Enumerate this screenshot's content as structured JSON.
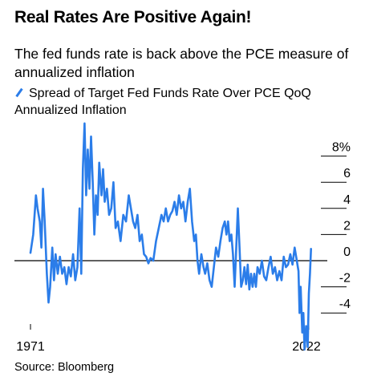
{
  "title": "Real Rates Are Positive Again!",
  "subtitle": "The fed funds rate is back above the PCE measure of annualized inflation",
  "source": "Source: Bloomberg",
  "series_color": "#2b7de9",
  "chart_data": {
    "type": "line",
    "series": [
      {
        "name": "Spread of Target Fed Funds Rate Over PCE QoQ Annualized Inflation",
        "points": [
          [
            1971.0,
            0.6
          ],
          [
            1971.5,
            2.0
          ],
          [
            1972.0,
            5.0
          ],
          [
            1972.3,
            4.0
          ],
          [
            1972.7,
            3.0
          ],
          [
            1973.0,
            1.0
          ],
          [
            1973.3,
            5.5
          ],
          [
            1973.6,
            3.0
          ],
          [
            1974.0,
            -1.0
          ],
          [
            1974.3,
            -3.2
          ],
          [
            1974.6,
            -2.0
          ],
          [
            1975.0,
            1.0
          ],
          [
            1975.3,
            -1.5
          ],
          [
            1975.6,
            0.5
          ],
          [
            1976.0,
            -1.0
          ],
          [
            1976.4,
            0.3
          ],
          [
            1976.8,
            -1.0
          ],
          [
            1977.2,
            -0.5
          ],
          [
            1977.6,
            -1.8
          ],
          [
            1978.0,
            -0.5
          ],
          [
            1978.4,
            -1.2
          ],
          [
            1978.8,
            0.5
          ],
          [
            1979.2,
            -1.5
          ],
          [
            1979.6,
            -0.5
          ],
          [
            1980.0,
            4.0
          ],
          [
            1980.3,
            -1.0
          ],
          [
            1980.6,
            7.0
          ],
          [
            1980.9,
            10.5
          ],
          [
            1981.2,
            5.0
          ],
          [
            1981.5,
            8.5
          ],
          [
            1981.8,
            5.5
          ],
          [
            1982.1,
            9.5
          ],
          [
            1982.4,
            6.0
          ],
          [
            1982.7,
            2.0
          ],
          [
            1983.0,
            5.0
          ],
          [
            1983.3,
            3.5
          ],
          [
            1983.6,
            7.5
          ],
          [
            1984.0,
            5.0
          ],
          [
            1984.3,
            7.0
          ],
          [
            1984.6,
            4.5
          ],
          [
            1985.0,
            5.5
          ],
          [
            1985.4,
            3.5
          ],
          [
            1985.8,
            4.0
          ],
          [
            1986.2,
            6.0
          ],
          [
            1986.6,
            2.5
          ],
          [
            1987.0,
            3.0
          ],
          [
            1987.5,
            1.5
          ],
          [
            1988.0,
            3.5
          ],
          [
            1988.5,
            3.0
          ],
          [
            1989.0,
            5.0
          ],
          [
            1989.4,
            4.0
          ],
          [
            1989.8,
            3.0
          ],
          [
            1990.2,
            2.5
          ],
          [
            1990.6,
            3.5
          ],
          [
            1991.0,
            1.5
          ],
          [
            1991.4,
            2.0
          ],
          [
            1991.8,
            0.5
          ],
          [
            1992.2,
            0.3
          ],
          [
            1992.6,
            -0.2
          ],
          [
            1993.0,
            0.2
          ],
          [
            1993.5,
            0.0
          ],
          [
            1994.0,
            1.5
          ],
          [
            1994.5,
            2.5
          ],
          [
            1995.0,
            3.5
          ],
          [
            1995.4,
            3.0
          ],
          [
            1995.8,
            4.0
          ],
          [
            1996.2,
            3.0
          ],
          [
            1996.6,
            3.5
          ],
          [
            1997.0,
            3.8
          ],
          [
            1997.4,
            4.5
          ],
          [
            1997.8,
            3.5
          ],
          [
            1998.2,
            5.0
          ],
          [
            1998.6,
            4.0
          ],
          [
            1999.0,
            4.5
          ],
          [
            1999.4,
            3.0
          ],
          [
            1999.8,
            4.5
          ],
          [
            2000.2,
            5.5
          ],
          [
            2000.6,
            3.0
          ],
          [
            2001.0,
            1.5
          ],
          [
            2001.3,
            2.0
          ],
          [
            2001.6,
            0.0
          ],
          [
            2001.9,
            -1.0
          ],
          [
            2002.3,
            0.5
          ],
          [
            2002.7,
            -0.5
          ],
          [
            2003.0,
            -1.0
          ],
          [
            2003.4,
            -0.2
          ],
          [
            2003.8,
            -1.5
          ],
          [
            2004.2,
            -2.0
          ],
          [
            2004.6,
            -0.5
          ],
          [
            2005.0,
            1.0
          ],
          [
            2005.4,
            0.3
          ],
          [
            2005.8,
            1.5
          ],
          [
            2006.2,
            2.5
          ],
          [
            2006.6,
            3.0
          ],
          [
            2006.9,
            2.0
          ],
          [
            2007.2,
            3.0
          ],
          [
            2007.5,
            1.5
          ],
          [
            2007.8,
            2.0
          ],
          [
            2008.1,
            0.5
          ],
          [
            2008.4,
            -2.0
          ],
          [
            2008.7,
            1.0
          ],
          [
            2009.0,
            4.0
          ],
          [
            2009.3,
            1.0
          ],
          [
            2009.6,
            -2.0
          ],
          [
            2009.9,
            -1.5
          ],
          [
            2010.2,
            -0.5
          ],
          [
            2010.5,
            -1.8
          ],
          [
            2010.8,
            -0.3
          ],
          [
            2011.1,
            -2.2
          ],
          [
            2011.4,
            -1.0
          ],
          [
            2011.7,
            -2.0
          ],
          [
            2012.0,
            -1.0
          ],
          [
            2012.3,
            -2.0
          ],
          [
            2012.6,
            -0.5
          ],
          [
            2013.0,
            -1.0
          ],
          [
            2013.4,
            0.0
          ],
          [
            2013.8,
            -1.2
          ],
          [
            2014.2,
            -1.5
          ],
          [
            2014.6,
            -0.5
          ],
          [
            2015.0,
            0.3
          ],
          [
            2015.4,
            -1.0
          ],
          [
            2015.8,
            -0.5
          ],
          [
            2016.2,
            -1.5
          ],
          [
            2016.6,
            -0.8
          ],
          [
            2017.0,
            -1.5
          ],
          [
            2017.4,
            0.3
          ],
          [
            2017.8,
            -0.5
          ],
          [
            2018.2,
            -0.3
          ],
          [
            2018.6,
            0.5
          ],
          [
            2019.0,
            -0.3
          ],
          [
            2019.4,
            1.0
          ],
          [
            2019.8,
            0.0
          ],
          [
            2020.1,
            -0.8
          ],
          [
            2020.3,
            -4.0
          ],
          [
            2020.5,
            -2.0
          ],
          [
            2020.8,
            -5.5
          ],
          [
            2021.0,
            -4.0
          ],
          [
            2021.2,
            -6.8
          ],
          [
            2021.5,
            -5.0
          ],
          [
            2021.8,
            -6.6
          ],
          [
            2022.0,
            -2.5
          ],
          [
            2022.2,
            -1.0
          ],
          [
            2022.4,
            0.9
          ]
        ]
      }
    ],
    "x_ticks": [
      "1971",
      "2022"
    ],
    "y_ticks": [
      "8%",
      "6",
      "4",
      "2",
      "0",
      "-2",
      "-4"
    ],
    "xlim": [
      1971,
      2022
    ],
    "ylim": [
      -7,
      11
    ]
  }
}
